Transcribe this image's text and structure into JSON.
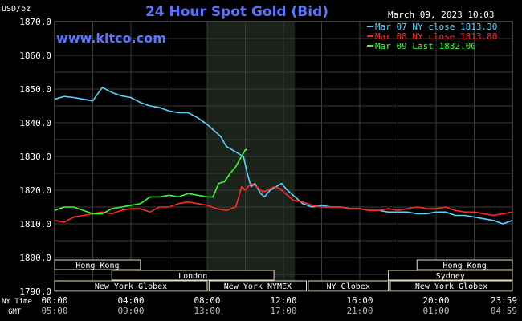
{
  "chart_data": {
    "type": "line",
    "title": "24 Hour Spot Gold (Bid)",
    "watermark": "www.kitco.com",
    "timestamp": "March 09, 2023 10:03",
    "ylabel": "USD/oz",
    "ylim": [
      1790,
      1870
    ],
    "xlim": [
      0,
      24
    ],
    "yticks": [
      "1870.0",
      "1860.0",
      "1850.0",
      "1840.0",
      "1830.0",
      "1820.0",
      "1810.0",
      "1800.0",
      "1790.0"
    ],
    "ytick_values": [
      1870,
      1860,
      1850,
      1840,
      1830,
      1820,
      1810,
      1800,
      1790
    ],
    "xtick_hours": [
      0,
      4,
      8,
      12,
      16,
      20,
      24
    ],
    "xticks_ny": [
      "00:00",
      "04:00",
      "08:00",
      "12:00",
      "16:00",
      "20:00",
      "23:59"
    ],
    "xticks_gmt": [
      "05:00",
      "09:00",
      "13:00",
      "17:00",
      "21:00",
      "01:00",
      "04:59"
    ],
    "row_label_ny": "NY Time",
    "row_label_gmt": "GMT",
    "grid": true,
    "legend_position": "top-right",
    "highlight_range": [
      8,
      12.6
    ],
    "colors": {
      "background": "#000000",
      "grid": "#3c3c3c",
      "title": "#5a74ff",
      "watermark": "#5a74ff",
      "highlight": "#1a221a",
      "label": "#ffffff"
    },
    "series": [
      {
        "name": "Mar 07 NY close 1813.30",
        "color": "#5ad2ff",
        "x": [
          0,
          0.5,
          1,
          1.5,
          2,
          2.5,
          3,
          3.5,
          4,
          4.5,
          5,
          5.5,
          6,
          6.5,
          7,
          7.5,
          8,
          8.3,
          8.7,
          9,
          9.3,
          9.6,
          9.9,
          10.1,
          10.3,
          10.5,
          10.8,
          11,
          11.3,
          11.6,
          11.9,
          12.2,
          12.6,
          13,
          13.5,
          14,
          14.5,
          15,
          15.5,
          16,
          16.5,
          17,
          17.5,
          18,
          18.5,
          19,
          19.5,
          20,
          20.5,
          21,
          21.5,
          22,
          22.5,
          23,
          23.5,
          24
        ],
        "values": [
          1847,
          1847.8,
          1847.5,
          1847,
          1846.5,
          1850.5,
          1849,
          1848,
          1847.5,
          1846,
          1845,
          1844.5,
          1843.5,
          1843,
          1843,
          1841.5,
          1839.5,
          1838,
          1836,
          1833,
          1832,
          1831,
          1830,
          1825,
          1821,
          1822,
          1819,
          1818,
          1820,
          1821,
          1822,
          1820,
          1818,
          1816,
          1815,
          1815.5,
          1815,
          1815,
          1814.5,
          1814.5,
          1814,
          1814,
          1813.5,
          1813.5,
          1813.5,
          1813,
          1813,
          1813.5,
          1813.5,
          1812.5,
          1812.5,
          1812,
          1811.5,
          1811,
          1810,
          1811
        ]
      },
      {
        "name": "Mar 08 NY close 1813.80",
        "color": "#ff2a2a",
        "x": [
          0,
          0.5,
          1,
          1.5,
          2,
          2.5,
          3,
          3.5,
          4,
          4.5,
          5,
          5.5,
          6,
          6.5,
          7,
          7.5,
          8,
          8.5,
          9,
          9.5,
          9.8,
          10,
          10.3,
          10.6,
          10.9,
          11.2,
          11.5,
          11.8,
          12.1,
          12.5,
          13,
          13.5,
          14,
          14.5,
          15,
          15.5,
          16,
          16.5,
          17,
          17.5,
          18,
          18.5,
          19,
          19.5,
          20,
          20.5,
          21,
          21.5,
          22,
          22.5,
          23,
          23.5,
          24
        ],
        "values": [
          1811,
          1810.5,
          1812,
          1812.5,
          1813,
          1813.5,
          1813,
          1814,
          1814.5,
          1814.5,
          1813.5,
          1815,
          1815,
          1816,
          1816.5,
          1816,
          1815.5,
          1814.5,
          1814,
          1815,
          1821,
          1820,
          1822,
          1821,
          1819.5,
          1820,
          1821,
          1820.5,
          1819,
          1817,
          1816.5,
          1815.5,
          1815,
          1815,
          1815,
          1814.5,
          1814.5,
          1814,
          1814,
          1814.5,
          1814,
          1814.5,
          1815,
          1814.5,
          1814.5,
          1815,
          1814,
          1813.5,
          1813.5,
          1813,
          1812.5,
          1813,
          1813.5
        ]
      },
      {
        "name": "Mar 09 Last 1832.00",
        "color": "#33ff33",
        "x": [
          0,
          0.5,
          1,
          1.5,
          2,
          2.5,
          3,
          3.5,
          4,
          4.5,
          5,
          5.5,
          6,
          6.5,
          7,
          7.5,
          8,
          8.3,
          8.6,
          8.9,
          9.2,
          9.5,
          9.8,
          10,
          10.1
        ],
        "values": [
          1814,
          1815,
          1815,
          1814,
          1813,
          1813,
          1814.5,
          1815,
          1815.5,
          1816,
          1818,
          1818,
          1818.5,
          1818,
          1819,
          1818.5,
          1818,
          1818,
          1822,
          1822.5,
          1825,
          1827,
          1830,
          1832,
          1832
        ]
      }
    ],
    "sessions": [
      {
        "label": "Hong Kong",
        "start": 0,
        "end": 4.5,
        "row": 0
      },
      {
        "label": "Hong Kong",
        "start": 19,
        "end": 24,
        "row": 0
      },
      {
        "label": "London",
        "start": 3,
        "end": 11.5,
        "row": 1
      },
      {
        "label": "Sydney",
        "start": 17.5,
        "end": 24,
        "row": 1
      },
      {
        "label": "New York Globex",
        "start": 0,
        "end": 8,
        "row": 2
      },
      {
        "label": "New York NYMEX",
        "start": 8.1,
        "end": 13.2,
        "row": 2
      },
      {
        "label": "NY Globex",
        "start": 13.3,
        "end": 17.5,
        "row": 2
      },
      {
        "label": "New York Globex",
        "start": 17.6,
        "end": 24,
        "row": 2
      }
    ]
  }
}
